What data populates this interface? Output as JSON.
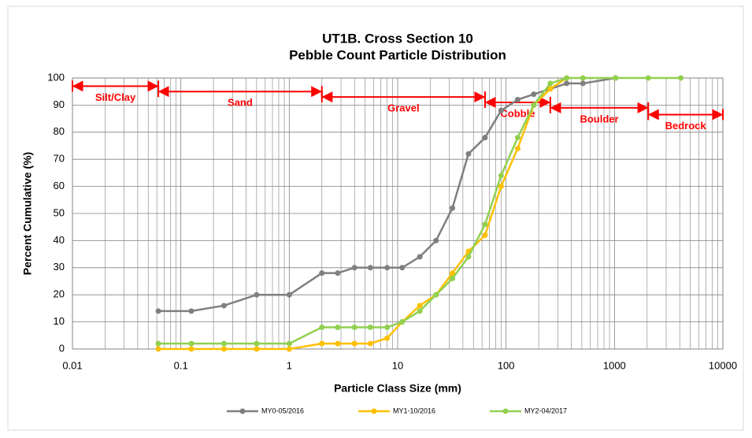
{
  "chart_data": {
    "type": "line",
    "title": "UT1B. Cross Section 10",
    "subtitle": "Pebble Count Particle Distribution",
    "x_label": "Particle Class Size (mm)",
    "y_label": "Percent Cumulative (%)",
    "x": [
      0.062,
      0.125,
      0.25,
      0.5,
      1,
      2,
      2.8,
      4,
      5.6,
      8,
      11,
      16,
      22.6,
      32,
      45,
      64,
      90,
      128,
      180,
      256,
      362,
      512,
      1024,
      2048,
      4096
    ],
    "series": [
      {
        "name": "MY0-05/2016",
        "color": "#7f7f7f",
        "values": [
          14,
          14,
          16,
          20,
          20,
          28,
          28,
          30,
          30,
          30,
          30,
          34,
          40,
          52,
          72,
          78,
          88,
          92,
          94,
          96,
          98,
          98,
          100,
          null,
          null
        ]
      },
      {
        "name": "MY1-10/2016",
        "color": "#ffc000",
        "values": [
          0,
          0,
          0,
          0,
          0,
          2,
          2,
          2,
          2,
          4,
          10,
          16,
          20,
          28,
          36,
          42,
          60,
          74,
          90,
          96,
          100,
          null,
          null,
          null,
          null
        ]
      },
      {
        "name": "MY2-04/2017",
        "color": "#92d050",
        "values": [
          2,
          2,
          2,
          2,
          2,
          8,
          8,
          8,
          8,
          8,
          10,
          14,
          20,
          26,
          34,
          46,
          64,
          78,
          90,
          98,
          100,
          100,
          100,
          100,
          100
        ]
      }
    ],
    "log_x": true,
    "xlim": [
      0.01,
      10000
    ],
    "xticks": [
      0.01,
      0.1,
      1,
      10,
      100,
      1000,
      10000
    ],
    "ylim": [
      0,
      100
    ],
    "yticks": [
      0,
      10,
      20,
      30,
      40,
      50,
      60,
      70,
      80,
      90,
      100
    ],
    "grid": true,
    "legend": "bottom",
    "annotations": [
      {
        "label": "Silt/Clay",
        "from": 0.01,
        "to": 0.062,
        "y": 97
      },
      {
        "label": "Sand",
        "from": 0.062,
        "to": 2,
        "y": 95
      },
      {
        "label": "Gravel",
        "from": 2,
        "to": 64,
        "y": 93
      },
      {
        "label": "Cobble",
        "from": 64,
        "to": 256,
        "y": 91
      },
      {
        "label": "Boulder",
        "from": 256,
        "to": 2048,
        "y": 89
      },
      {
        "label": "Bedrock",
        "from": 2048,
        "to": 10000,
        "y": 86.5
      }
    ],
    "annotation_color": "#ff0000"
  }
}
